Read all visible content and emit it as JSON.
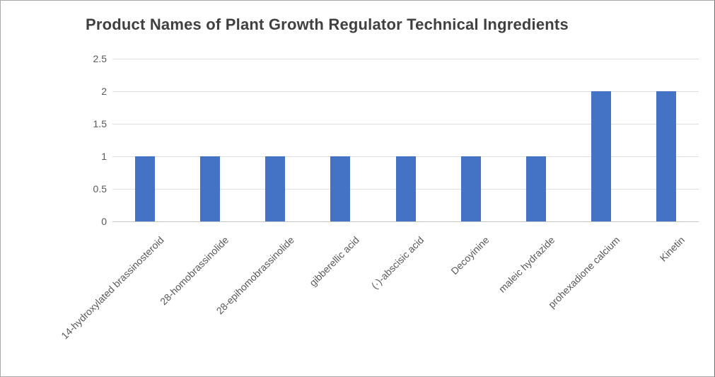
{
  "window": {
    "background": "#ffffff",
    "border_color": "#a9a9a9"
  },
  "chart_data": {
    "type": "bar",
    "title": "Product Names of Plant Growth Regulator Technical Ingredients",
    "categories": [
      "14-hydroxylated brassinosteroid",
      "28-homobrassinolide",
      "28-epihomobrassinolide",
      "gibberellic acid",
      "(·)-abscisic acid",
      "Decoyinine",
      "maleic hydrazide",
      "prohexadione calcium",
      "Kinetin"
    ],
    "values": [
      1,
      1,
      1,
      1,
      1,
      1,
      1,
      2,
      2
    ],
    "xlabel": "",
    "ylabel": "",
    "ylim": [
      0,
      2.5
    ],
    "yticks": [
      "0",
      "0.5",
      "1",
      "1.5",
      "2",
      "2.5"
    ],
    "legend": "none",
    "grid": "horizontal",
    "colors": {
      "bar": "#4472C4",
      "gridline": "#E0E0E0",
      "axis_line": "#C6C6C6",
      "tick_label": "#595959",
      "title": "#404040"
    }
  }
}
